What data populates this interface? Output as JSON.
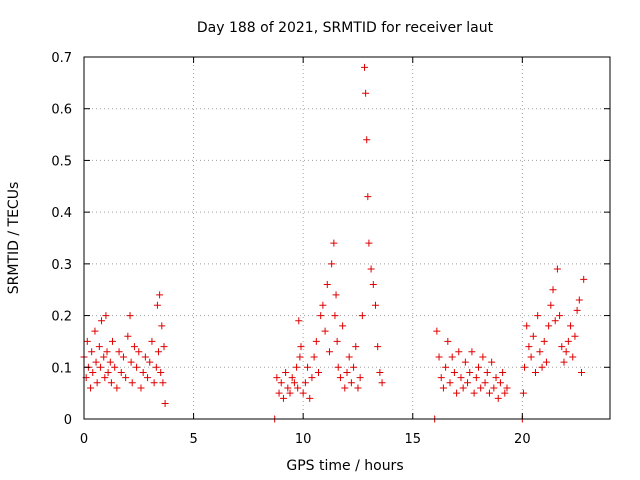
{
  "chart_data": {
    "type": "scatter",
    "title": "Day 188 of 2021, SRMTID for receiver laut",
    "xlabel": "GPS time / hours",
    "ylabel": "SRMTID / TECUs",
    "xlim": [
      0,
      24
    ],
    "ylim": [
      0,
      0.7
    ],
    "xticks": [
      0,
      5,
      10,
      15,
      20
    ],
    "xtick_labels": [
      "0",
      "5",
      "10",
      "15",
      "20"
    ],
    "yticks": [
      0,
      0.1,
      0.2,
      0.3,
      0.4,
      0.5,
      0.6,
      0.7
    ],
    "ytick_labels": [
      "0",
      "0.1",
      "0.2",
      "0.3",
      "0.4",
      "0.5",
      "0.6",
      "0.7"
    ],
    "grid": true,
    "marker": "plus",
    "series_color": "#e00000",
    "series": [
      {
        "name": "SRMTID",
        "x": [
          0.0,
          0.1,
          0.15,
          0.2,
          0.3,
          0.35,
          0.4,
          0.5,
          0.55,
          0.6,
          0.7,
          0.75,
          0.8,
          0.9,
          0.95,
          1.0,
          1.05,
          1.1,
          1.2,
          1.25,
          1.3,
          1.4,
          1.5,
          1.6,
          1.7,
          1.8,
          1.9,
          2.0,
          2.1,
          2.15,
          2.2,
          2.3,
          2.4,
          2.5,
          2.6,
          2.7,
          2.8,
          2.9,
          3.0,
          3.1,
          3.2,
          3.3,
          3.35,
          3.4,
          3.45,
          3.5,
          3.55,
          3.6,
          3.65,
          3.7,
          8.7,
          8.8,
          8.9,
          9.0,
          9.1,
          9.2,
          9.3,
          9.4,
          9.5,
          9.6,
          9.7,
          9.75,
          9.8,
          9.85,
          9.9,
          10.0,
          10.1,
          10.2,
          10.3,
          10.4,
          10.5,
          10.6,
          10.7,
          10.8,
          10.9,
          11.0,
          11.1,
          11.2,
          11.3,
          11.4,
          11.45,
          11.5,
          11.55,
          11.6,
          11.7,
          11.8,
          11.9,
          12.0,
          12.1,
          12.2,
          12.3,
          12.4,
          12.5,
          12.6,
          12.7,
          12.8,
          12.85,
          12.9,
          12.95,
          13.0,
          13.1,
          13.2,
          13.3,
          13.4,
          13.5,
          13.6,
          16.0,
          16.1,
          16.2,
          16.3,
          16.4,
          16.5,
          16.6,
          16.7,
          16.8,
          16.9,
          17.0,
          17.1,
          17.2,
          17.3,
          17.4,
          17.5,
          17.6,
          17.7,
          17.8,
          17.9,
          18.0,
          18.1,
          18.2,
          18.3,
          18.4,
          18.5,
          18.6,
          18.7,
          18.8,
          18.9,
          19.0,
          19.1,
          19.2,
          19.3,
          20.0,
          20.05,
          20.1,
          20.2,
          20.3,
          20.4,
          20.5,
          20.6,
          20.7,
          20.8,
          20.9,
          21.0,
          21.1,
          21.2,
          21.3,
          21.4,
          21.5,
          21.6,
          21.7,
          21.8,
          21.9,
          22.0,
          22.1,
          22.2,
          22.3,
          22.4,
          22.5,
          22.6,
          22.7,
          22.8
        ],
        "y": [
          0.12,
          0.08,
          0.15,
          0.1,
          0.06,
          0.13,
          0.09,
          0.17,
          0.11,
          0.07,
          0.14,
          0.1,
          0.19,
          0.12,
          0.08,
          0.2,
          0.13,
          0.09,
          0.11,
          0.07,
          0.15,
          0.1,
          0.06,
          0.13,
          0.09,
          0.12,
          0.08,
          0.16,
          0.2,
          0.11,
          0.07,
          0.14,
          0.1,
          0.13,
          0.06,
          0.09,
          0.12,
          0.08,
          0.11,
          0.15,
          0.07,
          0.1,
          0.22,
          0.13,
          0.24,
          0.09,
          0.18,
          0.07,
          0.14,
          0.03,
          0.0,
          0.08,
          0.05,
          0.07,
          0.04,
          0.09,
          0.06,
          0.05,
          0.08,
          0.07,
          0.1,
          0.06,
          0.19,
          0.12,
          0.14,
          0.05,
          0.07,
          0.1,
          0.04,
          0.08,
          0.12,
          0.15,
          0.09,
          0.2,
          0.22,
          0.17,
          0.26,
          0.13,
          0.3,
          0.34,
          0.2,
          0.24,
          0.15,
          0.1,
          0.08,
          0.18,
          0.06,
          0.09,
          0.12,
          0.07,
          0.1,
          0.14,
          0.06,
          0.08,
          0.2,
          0.68,
          0.63,
          0.54,
          0.43,
          0.34,
          0.29,
          0.26,
          0.22,
          0.14,
          0.09,
          0.07,
          0.0,
          0.17,
          0.12,
          0.08,
          0.06,
          0.1,
          0.15,
          0.07,
          0.12,
          0.09,
          0.05,
          0.13,
          0.08,
          0.06,
          0.11,
          0.07,
          0.09,
          0.13,
          0.05,
          0.08,
          0.1,
          0.06,
          0.12,
          0.07,
          0.09,
          0.05,
          0.11,
          0.06,
          0.08,
          0.04,
          0.07,
          0.09,
          0.05,
          0.06,
          0.0,
          0.05,
          0.1,
          0.18,
          0.14,
          0.12,
          0.16,
          0.09,
          0.2,
          0.13,
          0.1,
          0.15,
          0.11,
          0.18,
          0.22,
          0.25,
          0.19,
          0.29,
          0.2,
          0.14,
          0.11,
          0.13,
          0.15,
          0.18,
          0.12,
          0.16,
          0.21,
          0.23,
          0.09,
          0.27
        ]
      }
    ]
  }
}
